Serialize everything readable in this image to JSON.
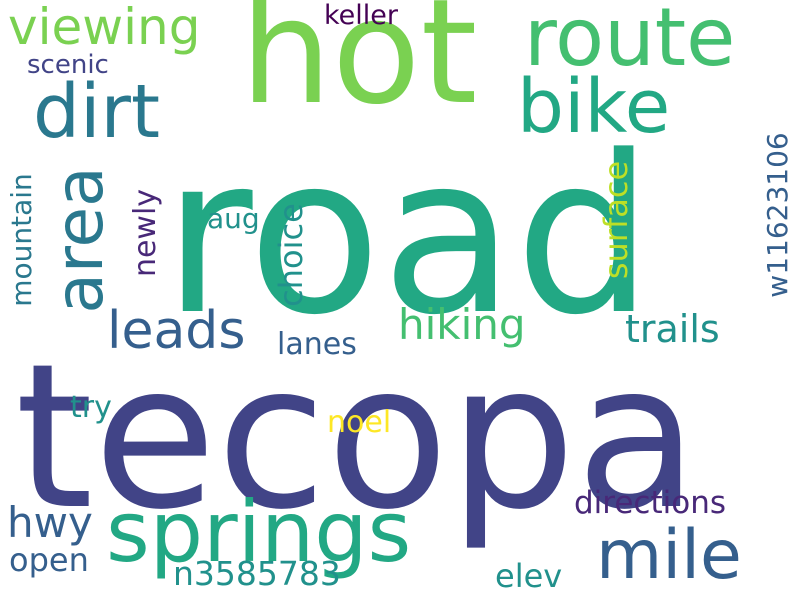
{
  "words": [
    {
      "key": "road",
      "text": "road",
      "color": "#22a884",
      "vertical": false
    },
    {
      "key": "tecopa",
      "text": "tecopa",
      "color": "#414487",
      "vertical": false
    },
    {
      "key": "hot",
      "text": "hot",
      "color": "#7ad151",
      "vertical": false
    },
    {
      "key": "springs",
      "text": "springs",
      "color": "#22a884",
      "vertical": false
    },
    {
      "key": "route",
      "text": "route",
      "color": "#44bf70",
      "vertical": false
    },
    {
      "key": "bike",
      "text": "bike",
      "color": "#22a884",
      "vertical": false
    },
    {
      "key": "dirt",
      "text": "dirt",
      "color": "#2a788e",
      "vertical": false
    },
    {
      "key": "mile",
      "text": "mile",
      "color": "#355f8d",
      "vertical": false
    },
    {
      "key": "area",
      "text": "area",
      "color": "#2a788e",
      "vertical": true
    },
    {
      "key": "viewing",
      "text": "viewing",
      "color": "#7ad151",
      "vertical": false
    },
    {
      "key": "leads",
      "text": "leads",
      "color": "#355f8d",
      "vertical": false
    },
    {
      "key": "hiking",
      "text": "hiking",
      "color": "#44bf70",
      "vertical": false
    },
    {
      "key": "trails",
      "text": "trails",
      "color": "#21918c",
      "vertical": false
    },
    {
      "key": "keller",
      "text": "keller",
      "color": "#440154",
      "vertical": false
    },
    {
      "key": "scenic",
      "text": "scenic",
      "color": "#414487",
      "vertical": false
    },
    {
      "key": "mountain",
      "text": "mountain",
      "color": "#2a788e",
      "vertical": true
    },
    {
      "key": "newly",
      "text": "newly",
      "color": "#482878",
      "vertical": true
    },
    {
      "key": "aug",
      "text": "aug",
      "color": "#21918c",
      "vertical": false
    },
    {
      "key": "choice",
      "text": "choice",
      "color": "#21918c",
      "vertical": true
    },
    {
      "key": "surface",
      "text": "surface",
      "color": "#bddf26",
      "vertical": true
    },
    {
      "key": "w11623106",
      "text": "w11623106",
      "color": "#355f8d",
      "vertical": true
    },
    {
      "key": "lanes",
      "text": "lanes",
      "color": "#355f8d",
      "vertical": false
    },
    {
      "key": "try",
      "text": "try",
      "color": "#21918c",
      "vertical": false
    },
    {
      "key": "noel",
      "text": "noel",
      "color": "#fde725",
      "vertical": false
    },
    {
      "key": "hwy",
      "text": "hwy",
      "color": "#355f8d",
      "vertical": false
    },
    {
      "key": "open",
      "text": "open",
      "color": "#355f8d",
      "vertical": false
    },
    {
      "key": "n3585783",
      "text": "n3585783",
      "color": "#21918c",
      "vertical": false
    },
    {
      "key": "elev",
      "text": "elev",
      "color": "#21918c",
      "vertical": false
    },
    {
      "key": "directions",
      "text": "directions",
      "color": "#482878",
      "vertical": false
    }
  ]
}
